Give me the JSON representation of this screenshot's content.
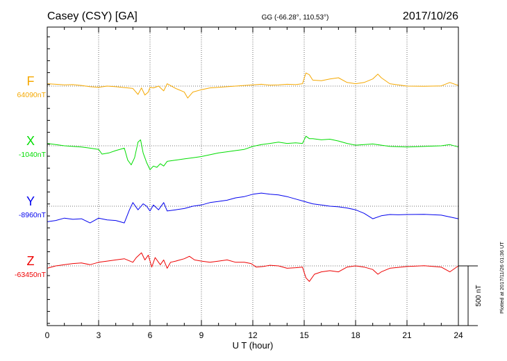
{
  "header": {
    "station": "Casey (CSY)  [GA]",
    "coords": "GG (-66.28°, 110.53°)",
    "date": "2017/10/26"
  },
  "footer": {
    "plotted_at": "Plotted at 2017/11/26 01:36 UT"
  },
  "chart_data": {
    "type": "line",
    "xlabel": "U T (hour)",
    "xlim": [
      0,
      24
    ],
    "xticks": [
      "0",
      "3",
      "6",
      "9",
      "12",
      "15",
      "18",
      "21",
      "24"
    ],
    "scale_bar": "500 nT",
    "scale_nT": 500,
    "grid": true,
    "series": [
      {
        "name": "F",
        "baseline_label": "64090nT",
        "baseline": 64090,
        "color": "#f5a800",
        "x": [
          0,
          0.5,
          1,
          1.5,
          2,
          2.5,
          3,
          3.5,
          4,
          4.5,
          5,
          5.3,
          5.5,
          5.7,
          5.9,
          6,
          6.2,
          6.5,
          6.8,
          7,
          7.5,
          8,
          8.2,
          8.5,
          9,
          9.5,
          10,
          10.5,
          11,
          11.5,
          12,
          12.5,
          13,
          13.5,
          14,
          14.5,
          14.9,
          15.1,
          15.3,
          15.5,
          16,
          16.5,
          17,
          17.5,
          18,
          18.5,
          19,
          19.3,
          19.5,
          20,
          21,
          22,
          23,
          23.5,
          24
        ],
        "values": [
          64110,
          64105,
          64100,
          64102,
          64095,
          64085,
          64080,
          64090,
          64085,
          64078,
          64070,
          64020,
          64075,
          64015,
          64040,
          64080,
          64075,
          64090,
          64050,
          64110,
          64070,
          64040,
          63990,
          64040,
          64060,
          64075,
          64080,
          64085,
          64090,
          64095,
          64100,
          64105,
          64098,
          64100,
          64105,
          64102,
          64110,
          64200,
          64185,
          64140,
          64135,
          64150,
          64160,
          64120,
          64110,
          64120,
          64150,
          64190,
          64160,
          64110,
          64090,
          64088,
          64092,
          64120,
          64095
        ]
      },
      {
        "name": "X",
        "baseline_label": "-1040nT",
        "baseline": -1040,
        "color": "#00dd00",
        "x": [
          0,
          0.5,
          1,
          1.5,
          2,
          2.5,
          3,
          3.2,
          3.6,
          4,
          4.5,
          4.7,
          4.9,
          5.1,
          5.3,
          5.45,
          5.6,
          5.8,
          6,
          6.2,
          6.4,
          6.6,
          6.8,
          7,
          7.5,
          8,
          8.5,
          9,
          9.5,
          10,
          10.5,
          11,
          11.5,
          12,
          12.5,
          13,
          13.5,
          14,
          14.5,
          14.9,
          15.1,
          15.3,
          15.5,
          16,
          16.5,
          17,
          17.5,
          18,
          18.5,
          19,
          19.5,
          20,
          21,
          22,
          23,
          23.5,
          24
        ],
        "values": [
          -1020,
          -1030,
          -1040,
          -1045,
          -1050,
          -1060,
          -1070,
          -1110,
          -1100,
          -1080,
          -1060,
          -1160,
          -1200,
          -1140,
          -1010,
          -990,
          -1100,
          -1180,
          -1240,
          -1210,
          -1220,
          -1190,
          -1210,
          -1170,
          -1160,
          -1150,
          -1140,
          -1130,
          -1115,
          -1100,
          -1090,
          -1080,
          -1070,
          -1045,
          -1030,
          -1020,
          -1010,
          -1020,
          -1015,
          -1020,
          -960,
          -980,
          -980,
          -990,
          -985,
          -1000,
          -1020,
          -1035,
          -1030,
          -1025,
          -1035,
          -1045,
          -1050,
          -1045,
          -1040,
          -1030,
          -1050
        ]
      },
      {
        "name": "Y",
        "baseline_label": "-8960nT",
        "baseline": -8960,
        "color": "#0000ee",
        "x": [
          0,
          0.5,
          1,
          1.5,
          2,
          2.5,
          3,
          3.5,
          4,
          4.5,
          4.8,
          5,
          5.3,
          5.6,
          5.8,
          6,
          6.2,
          6.5,
          6.8,
          7,
          7.5,
          8,
          8.5,
          9,
          9.5,
          10,
          10.5,
          11,
          11.5,
          12,
          12.5,
          13,
          13.5,
          14,
          14.5,
          15,
          15.5,
          16,
          16.5,
          17,
          17.5,
          18,
          18.5,
          19,
          19.5,
          20,
          20.5,
          21,
          22,
          23,
          24
        ],
        "values": [
          -9090,
          -9080,
          -9060,
          -9070,
          -9065,
          -9100,
          -9060,
          -9075,
          -9080,
          -9100,
          -8990,
          -8930,
          -8990,
          -8940,
          -8960,
          -9000,
          -8950,
          -8990,
          -8930,
          -9000,
          -8990,
          -8980,
          -8960,
          -8950,
          -8930,
          -8920,
          -8910,
          -8890,
          -8880,
          -8860,
          -8850,
          -8860,
          -8865,
          -8880,
          -8900,
          -8920,
          -8940,
          -8950,
          -8960,
          -8965,
          -8975,
          -8990,
          -9020,
          -9065,
          -9040,
          -9030,
          -9032,
          -9030,
          -9028,
          -9035,
          -9065
        ]
      },
      {
        "name": "Z",
        "baseline_label": "-63450nT",
        "baseline": -63450,
        "color": "#ee0000",
        "x": [
          0,
          0.5,
          1,
          1.5,
          2,
          2.5,
          3,
          3.5,
          4,
          4.5,
          5,
          5.2,
          5.5,
          5.7,
          5.9,
          6.1,
          6.3,
          6.6,
          6.8,
          7,
          7.2,
          7.5,
          8,
          8.3,
          8.6,
          9,
          9.5,
          10,
          10.5,
          11,
          11.5,
          11.9,
          12.2,
          12.6,
          13,
          13.5,
          14,
          14.5,
          14.9,
          15.1,
          15.3,
          15.6,
          16,
          16.5,
          17,
          17.5,
          18,
          18.5,
          19,
          19.3,
          19.5,
          20,
          21,
          22,
          23,
          23.5,
          24
        ],
        "values": [
          -63470,
          -63450,
          -63440,
          -63430,
          -63425,
          -63440,
          -63420,
          -63410,
          -63400,
          -63390,
          -63420,
          -63380,
          -63340,
          -63400,
          -63360,
          -63460,
          -63380,
          -63440,
          -63400,
          -63470,
          -63420,
          -63410,
          -63390,
          -63370,
          -63400,
          -63410,
          -63420,
          -63410,
          -63400,
          -63420,
          -63420,
          -63430,
          -63460,
          -63455,
          -63445,
          -63450,
          -63470,
          -63465,
          -63460,
          -63550,
          -63580,
          -63520,
          -63500,
          -63490,
          -63500,
          -63460,
          -63450,
          -63460,
          -63480,
          -63520,
          -63500,
          -63470,
          -63455,
          -63448,
          -63460,
          -63500,
          -63450
        ]
      }
    ]
  }
}
